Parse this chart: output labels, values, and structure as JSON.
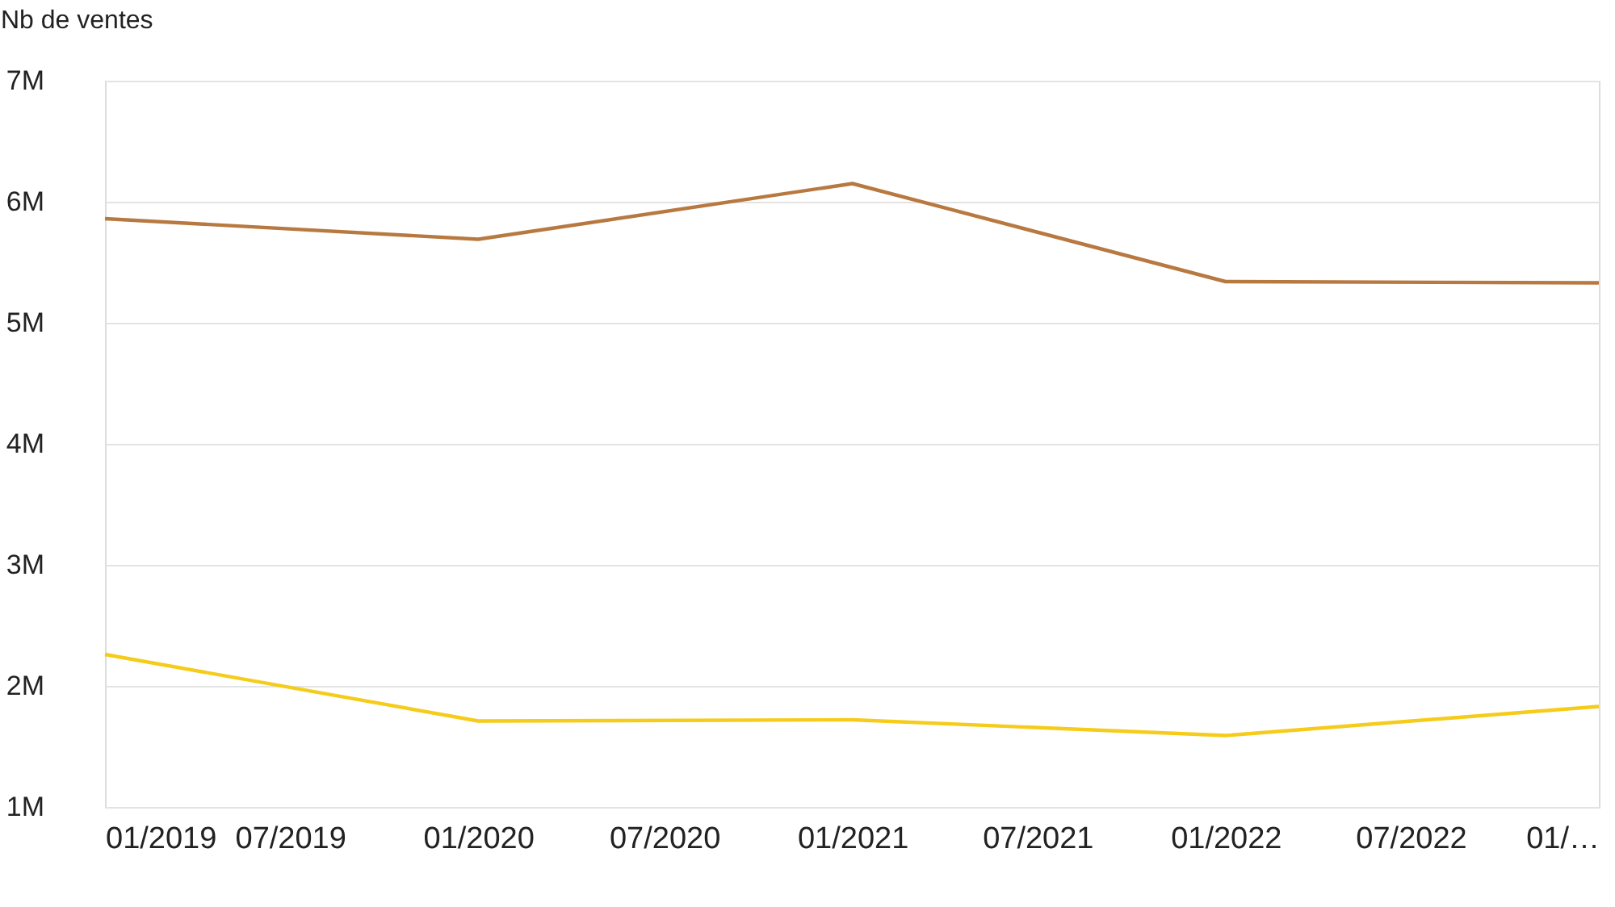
{
  "chart_data": {
    "type": "line",
    "ylabel": "Nb de ventes",
    "x": [
      "2019-01",
      "2020-01",
      "2021-01",
      "2022-01",
      "2023-01"
    ],
    "series": [
      {
        "color": "#b87941",
        "values": [
          5860000,
          5690000,
          6150000,
          5340000,
          5330000
        ]
      },
      {
        "color": "#f5cc1a",
        "values": [
          2260000,
          1710000,
          1720000,
          1590000,
          1830000
        ]
      }
    ],
    "xlim": [
      "2019-01",
      "2023-01"
    ],
    "xticks": [
      {
        "value": "2019-01",
        "label": "01/2019"
      },
      {
        "value": "2019-07",
        "label": "07/2019"
      },
      {
        "value": "2020-01",
        "label": "01/2020"
      },
      {
        "value": "2020-07",
        "label": "07/2020"
      },
      {
        "value": "2021-01",
        "label": "01/2021"
      },
      {
        "value": "2021-07",
        "label": "07/2021"
      },
      {
        "value": "2022-01",
        "label": "01/2022"
      },
      {
        "value": "2022-07",
        "label": "07/2022"
      },
      {
        "value": "2023-01",
        "label": "01/…"
      }
    ],
    "ylim": [
      1000000,
      7000000
    ],
    "yticks": [
      {
        "value": 1000000,
        "label": "1M"
      },
      {
        "value": 2000000,
        "label": "2M"
      },
      {
        "value": 3000000,
        "label": "3M"
      },
      {
        "value": 4000000,
        "label": "4M"
      },
      {
        "value": 5000000,
        "label": "5M"
      },
      {
        "value": 6000000,
        "label": "6M"
      },
      {
        "value": 7000000,
        "label": "7M"
      }
    ],
    "grid": "y",
    "legend": false,
    "marker": "none",
    "line_style": "solid"
  }
}
